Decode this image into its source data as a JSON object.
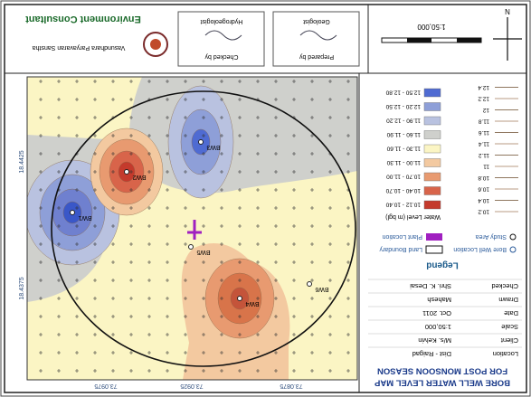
{
  "title": "BORE WELL WATER LEVEL MAP",
  "subtitle": "FOR POST MONSOON SEASON",
  "info": [
    {
      "label": "Location",
      "value": "Dist - Raigad"
    },
    {
      "label": "Client",
      "value": "M/s. Kelvin"
    },
    {
      "label": "Scale",
      "value": "1:50,000"
    },
    {
      "label": "Date",
      "value": "Oct. 2011"
    },
    {
      "label": "Drawn",
      "value": "Mahesh"
    },
    {
      "label": "Checked",
      "value": "Shri. K. Desai"
    }
  ],
  "legend": {
    "title": "Legend",
    "items": [
      "Bore Well Location",
      "Land Boundary",
      "Study Area",
      "Plant Location"
    ]
  },
  "water_level_legend": {
    "title": "Water Level (m bgl)",
    "ranges": [
      {
        "label": "10.12 - 10.40",
        "color": "#c43a2c"
      },
      {
        "label": "10.40 - 10.70",
        "color": "#d8644a"
      },
      {
        "label": "10.70 - 11.00",
        "color": "#e89a70"
      },
      {
        "label": "11.00 - 11.30",
        "color": "#f3c9a0"
      },
      {
        "label": "11.30 - 11.60",
        "color": "#fbf5c4"
      },
      {
        "label": "11.60 - 11.90",
        "color": "#cfd0cc"
      },
      {
        "label": "11.90 - 12.20",
        "color": "#b9c2e0"
      },
      {
        "label": "12.20 - 12.50",
        "color": "#8e9fd8"
      },
      {
        "label": "12.50 - 12.80",
        "color": "#4f6bd2"
      }
    ]
  },
  "contour_legend": [
    "10.2",
    "10.4",
    "10.6",
    "10.8",
    "11",
    "11.2",
    "11.4",
    "11.6",
    "11.8",
    "12",
    "12.2",
    "12.4"
  ],
  "map": {
    "coordinate_labels": [
      "73.0875",
      "73.0925",
      "73.0975",
      "18.4375",
      "18.4425"
    ],
    "well_labels": [
      "BW1",
      "BW2",
      "BW3",
      "BW4",
      "BW5",
      "BW6"
    ]
  },
  "header": {
    "company": "Environment Consultant",
    "address": "Vasundhara Paryavaran Sanstha",
    "prepared_label": "Prepared by",
    "prepared_by": "Geologist",
    "checked_label": "Checked by",
    "checked_by": "Hydrogeologist",
    "scale": "1:50,000",
    "north": "N"
  }
}
